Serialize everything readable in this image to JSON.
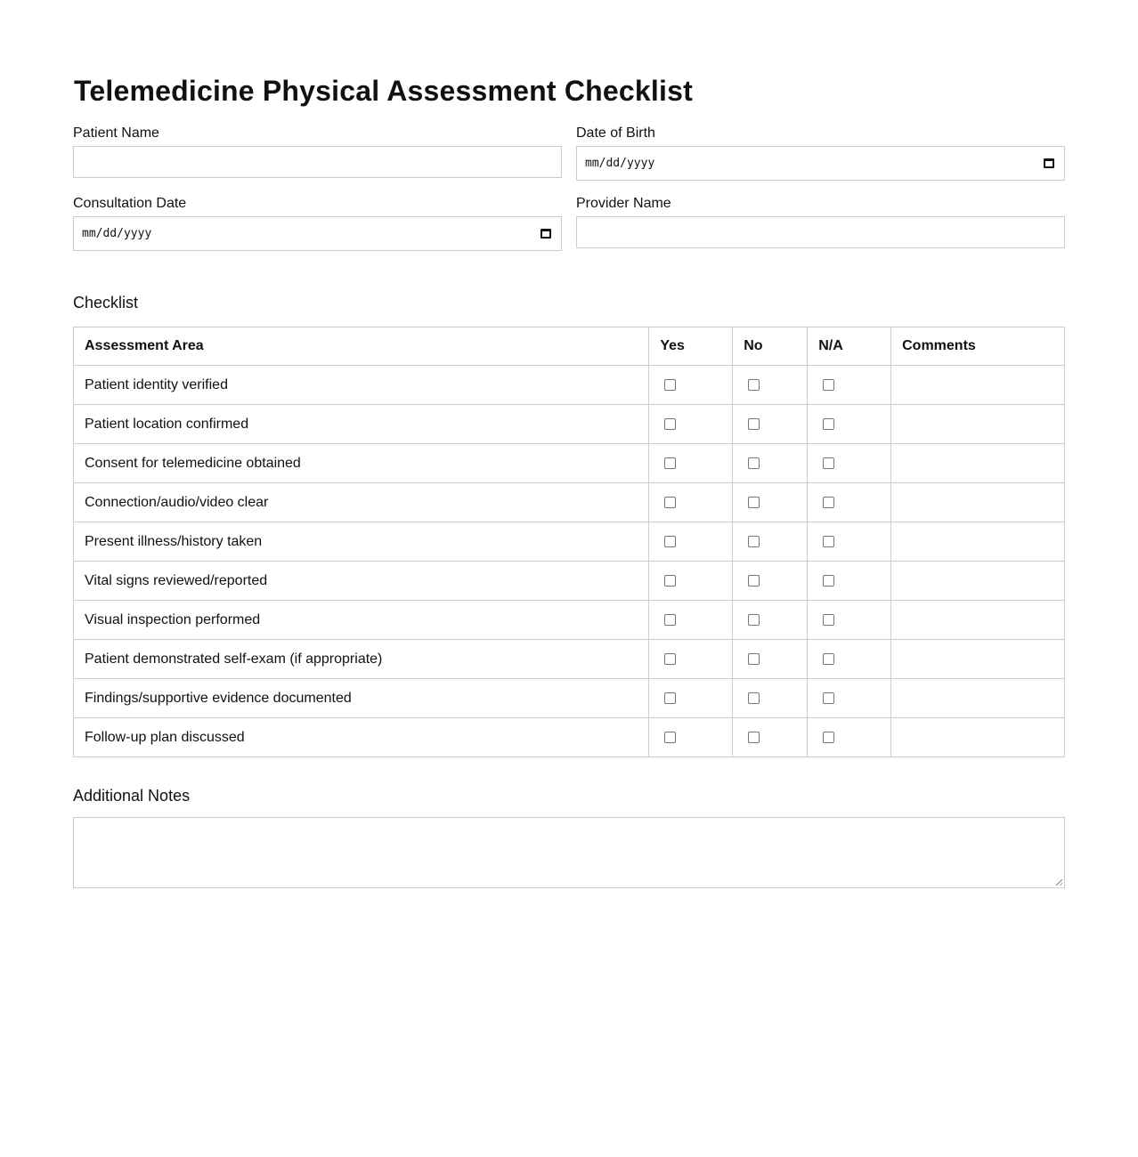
{
  "title": "Telemedicine Physical Assessment Checklist",
  "fields": {
    "patient_name": {
      "label": "Patient Name",
      "value": ""
    },
    "date_of_birth": {
      "label": "Date of Birth",
      "placeholder": "mm/dd/yyyy",
      "icon": "calendar-icon"
    },
    "consultation_date": {
      "label": "Consultation Date",
      "placeholder": "mm/dd/yyyy",
      "icon": "calendar-icon"
    },
    "provider_name": {
      "label": "Provider Name",
      "value": ""
    }
  },
  "checklist": {
    "heading": "Checklist",
    "columns": [
      "Assessment Area",
      "Yes",
      "No",
      "N/A",
      "Comments"
    ],
    "rows": [
      {
        "area": "Patient identity verified",
        "yes": false,
        "no": false,
        "na": false,
        "comments": ""
      },
      {
        "area": "Patient location confirmed",
        "yes": false,
        "no": false,
        "na": false,
        "comments": ""
      },
      {
        "area": "Consent for telemedicine obtained",
        "yes": false,
        "no": false,
        "na": false,
        "comments": ""
      },
      {
        "area": "Connection/audio/video clear",
        "yes": false,
        "no": false,
        "na": false,
        "comments": ""
      },
      {
        "area": "Present illness/history taken",
        "yes": false,
        "no": false,
        "na": false,
        "comments": ""
      },
      {
        "area": "Vital signs reviewed/reported",
        "yes": false,
        "no": false,
        "na": false,
        "comments": ""
      },
      {
        "area": "Visual inspection performed",
        "yes": false,
        "no": false,
        "na": false,
        "comments": ""
      },
      {
        "area": "Patient demonstrated self-exam (if appropriate)",
        "yes": false,
        "no": false,
        "na": false,
        "comments": ""
      },
      {
        "area": "Findings/supportive evidence documented",
        "yes": false,
        "no": false,
        "na": false,
        "comments": ""
      },
      {
        "area": "Follow-up plan discussed",
        "yes": false,
        "no": false,
        "na": false,
        "comments": ""
      }
    ]
  },
  "notes": {
    "heading": "Additional Notes",
    "value": ""
  }
}
